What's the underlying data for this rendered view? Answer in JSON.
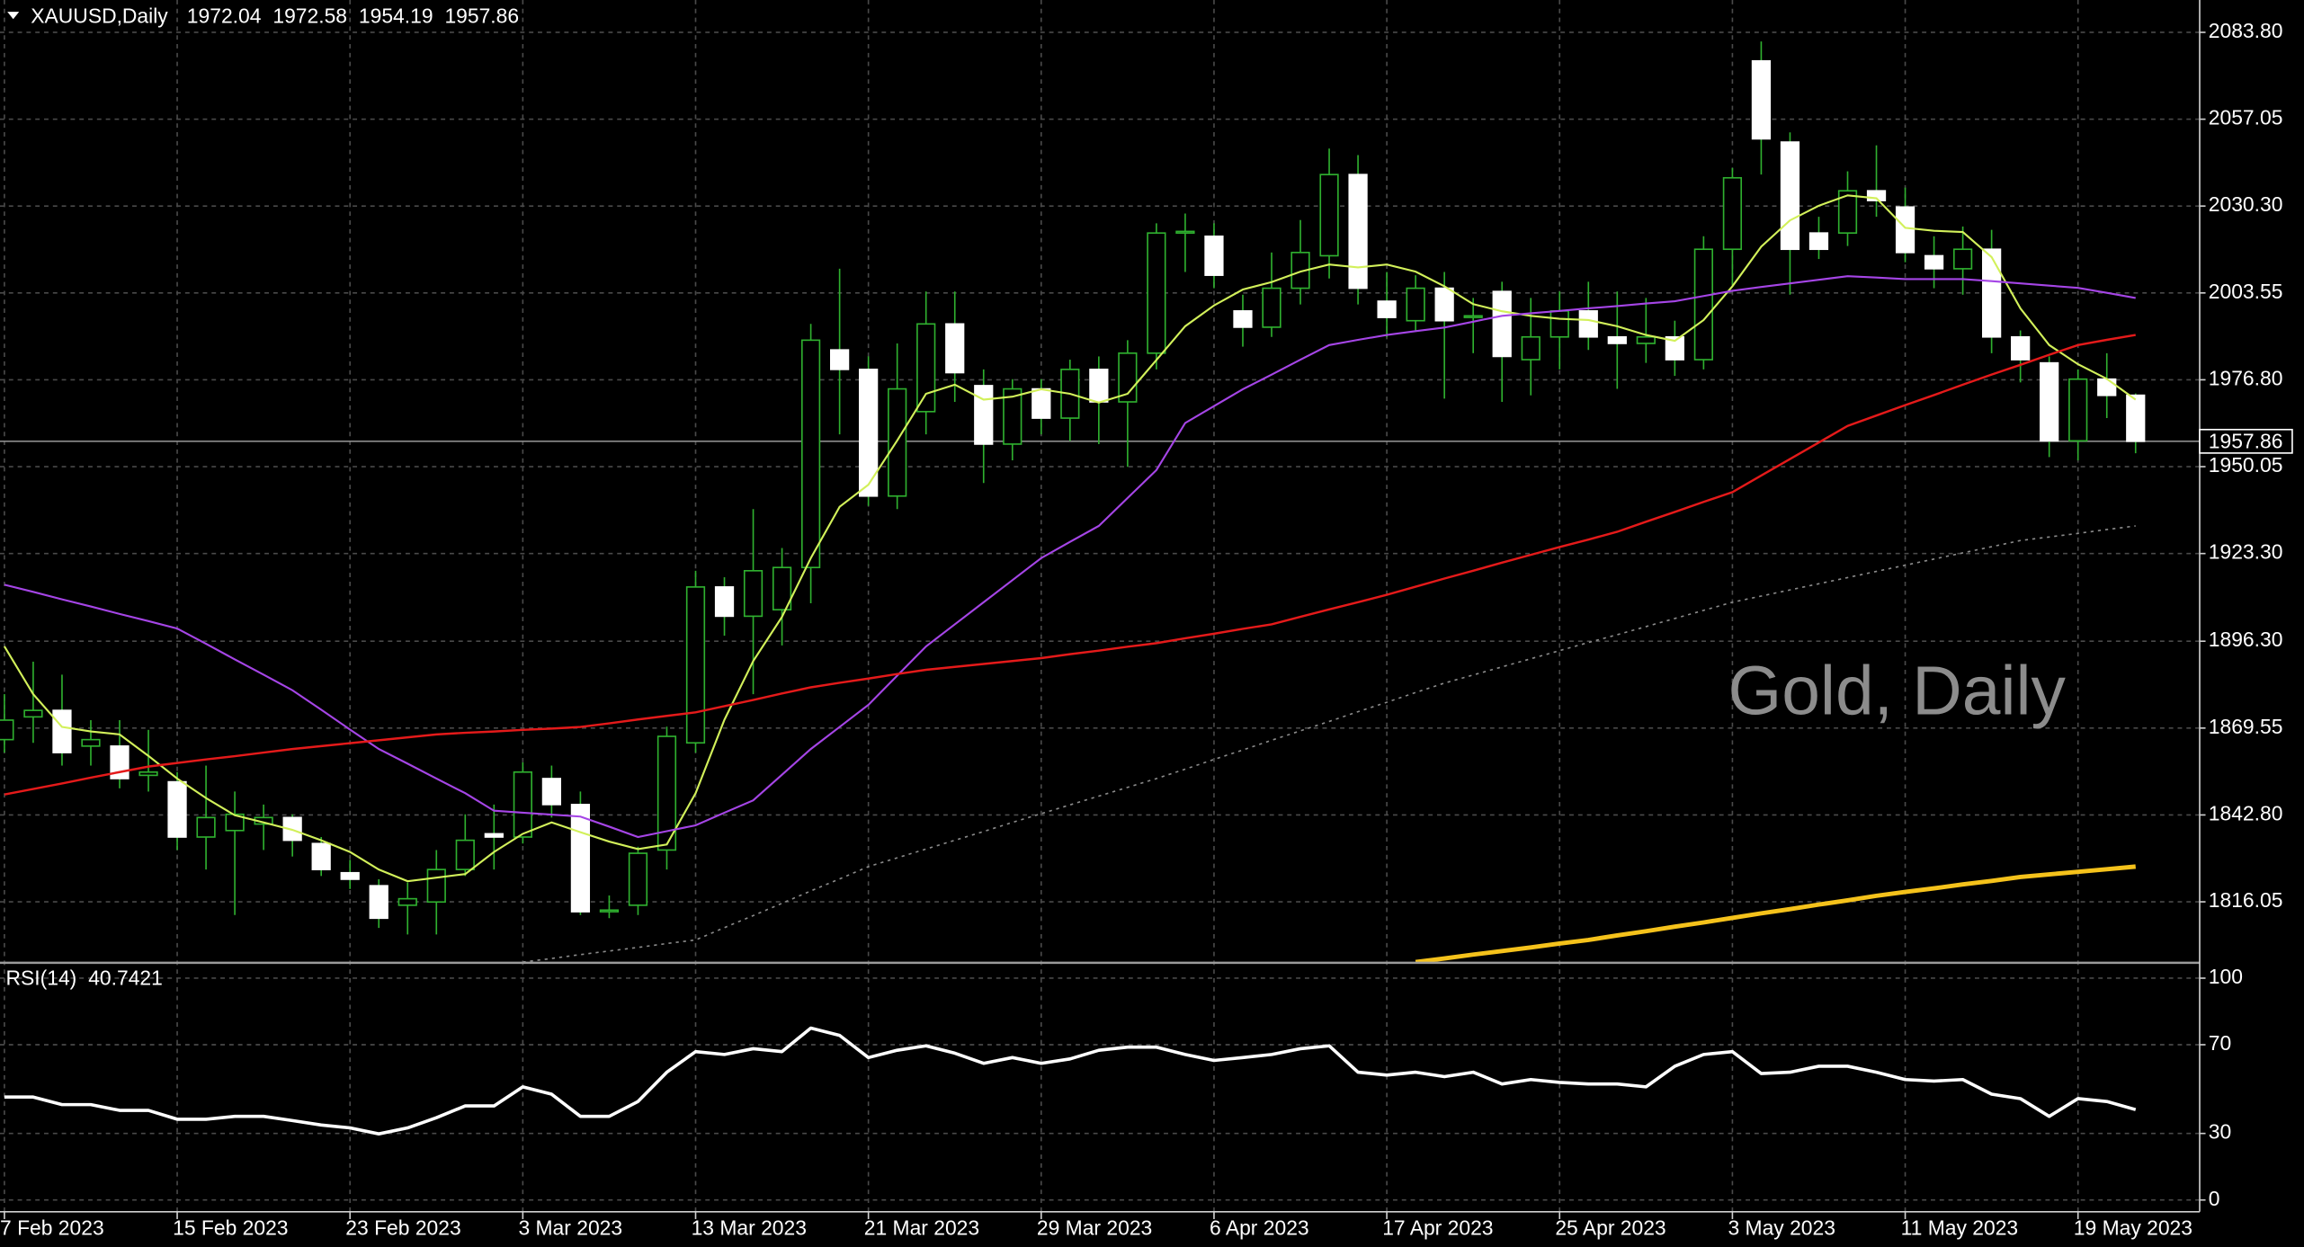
{
  "chart_data": [
    {
      "type": "candlestick",
      "title": "XAUUSD,Daily",
      "watermark": "Gold, Daily",
      "categories": [
        "7 Feb 2023",
        null,
        null,
        null,
        null,
        null,
        "15 Feb 2023",
        null,
        null,
        null,
        null,
        null,
        "23 Feb 2023",
        null,
        null,
        null,
        null,
        null,
        "3 Mar 2023",
        null,
        null,
        null,
        null,
        null,
        "13 Mar 2023",
        null,
        null,
        null,
        null,
        null,
        "21 Mar 2023",
        null,
        null,
        null,
        null,
        null,
        "29 Mar 2023",
        null,
        null,
        null,
        null,
        null,
        "6 Apr 2023",
        null,
        null,
        null,
        null,
        null,
        "17 Apr 2023",
        null,
        null,
        null,
        null,
        null,
        "25 Apr 2023",
        null,
        null,
        null,
        null,
        null,
        "3 May 2023",
        null,
        null,
        null,
        null,
        null,
        "11 May 2023",
        null,
        null,
        null,
        null,
        null,
        "19 May 2023",
        null,
        null
      ],
      "open": [
        1866,
        1873,
        1875,
        1864,
        1864,
        1855,
        1853,
        1836,
        1838,
        1840,
        1842,
        1834,
        1825,
        1821,
        1815,
        1816,
        1826,
        1837,
        1836,
        1854,
        1846,
        1813,
        1815,
        1832,
        1865,
        1913,
        1904,
        1906,
        1919,
        1986,
        1980,
        1941,
        1967,
        1994,
        1975,
        1957,
        1974,
        1965,
        1980,
        1970,
        1985,
        2022,
        2021,
        1998,
        1993,
        2005,
        2015,
        2040,
        2001,
        1995,
        2005,
        1996,
        2004,
        1983,
        1990,
        1998,
        1990,
        1988,
        1990,
        1983,
        2017,
        2075,
        2050,
        2022,
        2022,
        2035,
        2030,
        2015,
        2011,
        2017,
        1990,
        1982,
        1958,
        1977,
        1972.04
      ],
      "high": [
        1880,
        1890,
        1886,
        1872,
        1872,
        1869,
        1856,
        1858,
        1850,
        1846,
        1843,
        1836,
        1829,
        1823,
        1822,
        1832,
        1843,
        1846,
        1859,
        1858,
        1850,
        1818,
        1833,
        1870,
        1918,
        1916,
        1937,
        1925,
        1994,
        2011,
        1984,
        1988,
        2004,
        2004,
        1980,
        1977,
        1977,
        1983,
        1984,
        1989,
        2025,
        2028,
        2025,
        2003,
        2016,
        2026,
        2048,
        2046,
        2010,
        2009,
        2010,
        2002,
        2007,
        2002,
        2004,
        2007,
        2004,
        2002,
        1995,
        2021,
        2042,
        2081,
        2053,
        2027,
        2041,
        2049,
        2036,
        2021,
        2024,
        2023,
        1992,
        1984,
        1980,
        1985,
        1972.58
      ],
      "low": [
        1862,
        1865,
        1858,
        1858,
        1851,
        1850,
        1832,
        1826,
        1812,
        1832,
        1830,
        1824,
        1820,
        1808,
        1806,
        1806,
        1824,
        1826,
        1834,
        1842,
        1812,
        1811,
        1812,
        1826,
        1862,
        1898,
        1880,
        1895,
        1908,
        1960,
        1938,
        1937,
        1960,
        1970,
        1945,
        1952,
        1960,
        1958,
        1957,
        1950,
        1980,
        2010,
        2005,
        1987,
        1990,
        2000,
        2008,
        2000,
        1990,
        1992,
        1971,
        1985,
        1970,
        1972,
        1980,
        1986,
        1974,
        1982,
        1978,
        1980,
        2006,
        2040,
        2003,
        2014,
        2018,
        2027,
        2013,
        2005,
        2003,
        1985,
        1976,
        1953,
        1952,
        1965,
        1954.19
      ],
      "close": [
        1872,
        1875,
        1862,
        1866,
        1854,
        1856,
        1836,
        1842,
        1843,
        1842,
        1835,
        1826,
        1823,
        1811,
        1817,
        1826,
        1835,
        1836,
        1856,
        1846,
        1813,
        1813.5,
        1831,
        1867,
        1913,
        1904,
        1918,
        1919,
        1989,
        1980,
        1941,
        1974,
        1994,
        1979,
        1957,
        1974,
        1965,
        1980,
        1970,
        1985,
        2022,
        2022.5,
        2009,
        1993,
        2005,
        2016,
        2040,
        2005,
        1996,
        2005,
        1995,
        1996.5,
        1984,
        1990,
        1998,
        1990,
        1988,
        1990,
        1983,
        2017,
        2039,
        2051,
        2017,
        2017,
        2035,
        2032,
        2016,
        2011,
        2017,
        1990,
        1983,
        1958,
        1977,
        1972,
        1957.86
      ],
      "up_color": "#2fb02f",
      "down_color": "#ffffff",
      "series": [
        {
          "color": "#d2f05a",
          "width": 1.3,
          "values": [
            1894.7,
            1880,
            1869.9,
            1868.5,
            1867.6,
            1861,
            1854,
            1848,
            1842.7,
            1840.5,
            1838.2,
            1835,
            1831.4,
            1826,
            1822.4,
            1823.5,
            1824.6,
            1831.4,
            1837,
            1840.5,
            1837.5,
            1834.6,
            1832.3,
            1833.7,
            1849.5,
            1872.1,
            1890.2,
            1903.8,
            1921.9,
            1937.7,
            1944.5,
            1958.1,
            1972.5,
            1975.3,
            1970.7,
            1971.6,
            1973.9,
            1972.5,
            1969.8,
            1972.5,
            1982.9,
            1993.3,
            1999.7,
            2004.6,
            2006.9,
            2010.1,
            2012.3,
            2011.4,
            2012.3,
            2010.1,
            2005.6,
            2000.1,
            1997.9,
            1996.5,
            1995.6,
            1995.2,
            1993.3,
            1990.6,
            1988.8,
            1995.2,
            2005.6,
            2017.8,
            2025.9,
            2030.4,
            2033.6,
            2032.7,
            2023.6,
            2022.7,
            2022.3,
            2014.6,
            1998.8,
            1987.5,
            1981.6,
            1977.1,
            1970.7
          ]
        },
        {
          "color": "#a545e6",
          "width": 1.3,
          "values": [
            1913.7,
            1911.5,
            1909.2,
            1907,
            1904.7,
            1902.5,
            1900.2,
            1895.5,
            1890.7,
            1886,
            1881.2,
            1875.2,
            1869.1,
            1863.1,
            1858.6,
            1854,
            1849.5,
            1844.1,
            1843.5,
            1842.9,
            1842.3,
            1839.2,
            1836,
            1837.8,
            1839.6,
            1843.5,
            1847.3,
            1855.2,
            1863.1,
            1869.9,
            1876.7,
            1885.7,
            1894.7,
            1901.5,
            1908.3,
            1915.1,
            1921.9,
            1926.9,
            1931.8,
            1940.4,
            1949,
            1963.5,
            1968.7,
            1973.9,
            1978.4,
            1983,
            1987.5,
            1989.1,
            1990.6,
            1991.8,
            1992.9,
            1994.7,
            1996.5,
            1997.3,
            1998,
            1998.8,
            1999.5,
            2000.3,
            2001,
            2002.6,
            2004.2,
            2005.4,
            2006.5,
            2007.6,
            2008.7,
            2008.3,
            2007.8,
            2007.8,
            2007.8,
            2007.2,
            2006.5,
            2005.8,
            2005.1,
            2003.6,
            2002
          ]
        },
        {
          "color": "#e41a1a",
          "width": 1.5,
          "values": [
            1849.1,
            1850.8,
            1852.5,
            1854.3,
            1856,
            1857.7,
            1858.8,
            1859.9,
            1860.9,
            1862,
            1863.1,
            1864,
            1864.9,
            1865.8,
            1866.7,
            1867.6,
            1868.1,
            1868.5,
            1869,
            1869.4,
            1869.9,
            1871,
            1872.2,
            1873.3,
            1874.4,
            1876.3,
            1878.2,
            1880.2,
            1882.1,
            1883.5,
            1884.8,
            1886.2,
            1887.5,
            1888.4,
            1889.3,
            1890.2,
            1891.1,
            1892.3,
            1893.4,
            1894.6,
            1895.7,
            1897.2,
            1898.6,
            1900.1,
            1901.5,
            1903.8,
            1906.1,
            1908.3,
            1910.6,
            1913.1,
            1915.6,
            1918,
            1920.5,
            1922.9,
            1925.3,
            1927.6,
            1930,
            1933.1,
            1936.1,
            1939.2,
            1942.2,
            1947.3,
            1952.4,
            1957.5,
            1962.6,
            1965.8,
            1969,
            1972.1,
            1975.3,
            1978.4,
            1981.4,
            1984.5,
            1987.5,
            1989.1,
            1990.6
          ]
        },
        {
          "color": "#8a8a8a",
          "width": 1,
          "dash": true,
          "values": [
            null,
            null,
            null,
            null,
            null,
            null,
            null,
            null,
            null,
            null,
            null,
            null,
            null,
            null,
            null,
            null,
            null,
            null,
            1797.5,
            1798.6,
            1799.8,
            1800.9,
            1802,
            1803.2,
            1804.3,
            1808.1,
            1811.8,
            1815.6,
            1819.4,
            1823.1,
            1826.9,
            1829.6,
            1832.3,
            1835,
            1837.7,
            1840.5,
            1843.2,
            1845.9,
            1848.6,
            1851.3,
            1854,
            1856.9,
            1859.9,
            1862.8,
            1865.8,
            1868.7,
            1871.6,
            1874.6,
            1877.5,
            1880.5,
            1883.4,
            1885.9,
            1888.4,
            1890.9,
            1893.4,
            1895.9,
            1898.3,
            1900.8,
            1903.3,
            1905.8,
            1908.3,
            1910.2,
            1912.1,
            1914,
            1915.9,
            1917.8,
            1919.7,
            1921.6,
            1923.5,
            1925.4,
            1927.3,
            1928.4,
            1929.5,
            1930.7,
            1931.8
          ]
        },
        {
          "color": "#f5c21b",
          "width": 3,
          "values": [
            null,
            null,
            null,
            null,
            null,
            null,
            null,
            null,
            null,
            null,
            null,
            null,
            null,
            null,
            null,
            null,
            null,
            null,
            null,
            null,
            null,
            null,
            null,
            null,
            null,
            null,
            null,
            null,
            null,
            null,
            null,
            null,
            null,
            null,
            null,
            null,
            null,
            null,
            null,
            null,
            null,
            null,
            null,
            null,
            null,
            null,
            null,
            null,
            null,
            1797.5,
            1798.6,
            1799.8,
            1800.9,
            1802,
            1803.2,
            1804.3,
            1805.7,
            1807,
            1808.4,
            1809.7,
            1811.1,
            1812.5,
            1813.8,
            1815.2,
            1816.5,
            1817.9,
            1819.1,
            1820.2,
            1821.4,
            1822.5,
            1823.7,
            1824.5,
            1825.3,
            1826.1,
            1826.9
          ]
        }
      ],
      "ylim": [
        1797.5,
        2092.85
      ],
      "yticks": [
        {
          "value": 2083.8,
          "label": "2083.80"
        },
        {
          "value": 2057.05,
          "label": "2057.05"
        },
        {
          "value": 2030.3,
          "label": "2030.30"
        },
        {
          "value": 2003.55,
          "label": "2003.55"
        },
        {
          "value": 1976.8,
          "label": "1976.80"
        },
        {
          "value": 1950.05,
          "label": "1950.05"
        },
        {
          "value": 1923.3,
          "label": "1923.30"
        },
        {
          "value": 1896.3,
          "label": "1896.30"
        },
        {
          "value": 1869.55,
          "label": "1869.55"
        },
        {
          "value": 1842.8,
          "label": "1842.80"
        },
        {
          "value": 1816.05,
          "label": "1816.05"
        }
      ],
      "grid": true
    },
    {
      "type": "line",
      "title": "RSI(14)",
      "color": "#ffffff",
      "values": [
        46.4,
        46.4,
        43.0,
        43.0,
        40.4,
        40.4,
        36.4,
        36.4,
        37.7,
        37.7,
        35.8,
        33.8,
        32.5,
        29.8,
        32.5,
        37.1,
        42.4,
        42.4,
        51.0,
        47.7,
        37.7,
        37.7,
        44.4,
        57.6,
        66.9,
        65.6,
        68.2,
        66.9,
        77.5,
        74.2,
        64.2,
        67.5,
        69.5,
        66.2,
        61.6,
        64.2,
        61.6,
        63.6,
        67.5,
        68.9,
        68.9,
        65.6,
        62.9,
        64.2,
        65.6,
        68.2,
        69.5,
        57.6,
        56.3,
        57.6,
        55.6,
        57.6,
        52.3,
        54.3,
        53.0,
        52.3,
        52.3,
        51.0,
        60.3,
        65.6,
        66.9,
        57.0,
        57.6,
        60.3,
        60.3,
        57.6,
        54.3,
        53.6,
        54.3,
        47.7,
        45.7,
        37.7,
        45.7,
        44.4,
        40.7421
      ],
      "ylim": [
        -5.3,
        106.6
      ],
      "yticks": [
        100,
        70,
        30,
        0
      ],
      "grid": true
    }
  ]
}
